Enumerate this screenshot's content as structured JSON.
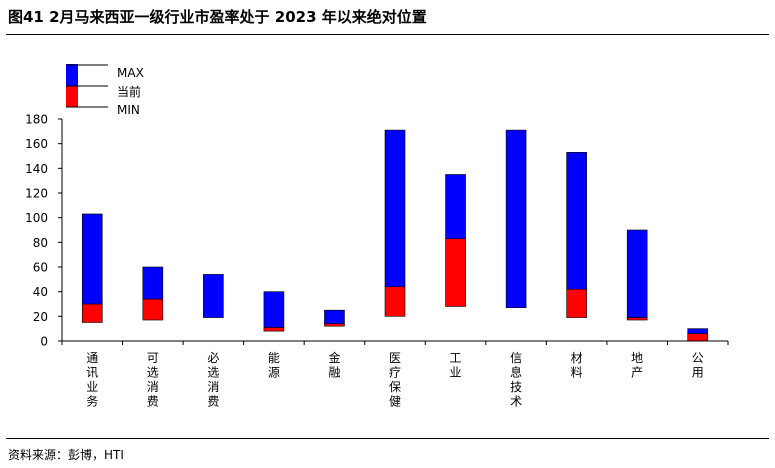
{
  "title": "图41 2月马来西亚一级行业市盈率处于 2023 年以来绝对位置",
  "source": "资料来源：彭博，HTI",
  "chart_data": {
    "type": "bar",
    "subtype": "floating-range",
    "categories": [
      "通讯业务",
      "可选消费",
      "必选消费",
      "能源",
      "金融",
      "医疗保健",
      "工业",
      "信息技术",
      "材料",
      "地产",
      "公用"
    ],
    "series": [
      {
        "name": "MAX",
        "color": "#0000ff",
        "values": [
          103,
          60,
          54,
          40,
          25,
          171,
          135,
          171,
          153,
          90,
          10
        ]
      },
      {
        "name": "当前",
        "color": "#ff0000",
        "values": [
          30,
          34,
          19,
          11,
          14,
          44,
          83,
          27,
          42,
          19,
          6
        ]
      },
      {
        "name": "MIN",
        "color": "#ffffff",
        "values": [
          15,
          17,
          19,
          8,
          12,
          20,
          28,
          27,
          19,
          17,
          0
        ]
      }
    ],
    "ylim": [
      0,
      180
    ],
    "yticks": [
      "0",
      "20",
      "40",
      "60",
      "80",
      "100",
      "120",
      "140",
      "160",
      "180"
    ],
    "legend": {
      "position": "top-left",
      "entries": [
        "MAX",
        "当前",
        "MIN"
      ]
    },
    "grid": false
  }
}
